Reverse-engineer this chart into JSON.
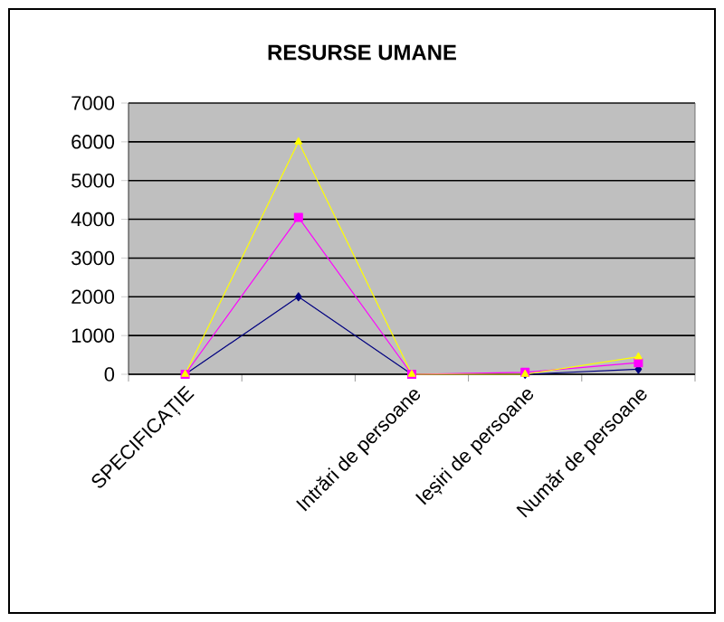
{
  "chart_data": {
    "type": "line",
    "title": "RESURSE UMANE",
    "categories": [
      "SPECIFICAȚIE",
      null,
      "Intrări de persoane",
      "Ieșiri de persoane",
      "Număr de persoane"
    ],
    "series": [
      {
        "color": "#000080",
        "marker": "diamond",
        "values": [
          0,
          2000,
          0,
          0,
          130
        ]
      },
      {
        "color": "#ff00ff",
        "marker": "square",
        "values": [
          0,
          4050,
          0,
          50,
          300
        ]
      },
      {
        "color": "#ffff00",
        "marker": "triangle",
        "values": [
          0,
          6000,
          0,
          0,
          450
        ]
      }
    ],
    "ylim": [
      0,
      7000
    ],
    "yticks": [
      0,
      1000,
      2000,
      3000,
      4000,
      5000,
      6000,
      7000
    ],
    "grid": "y"
  }
}
